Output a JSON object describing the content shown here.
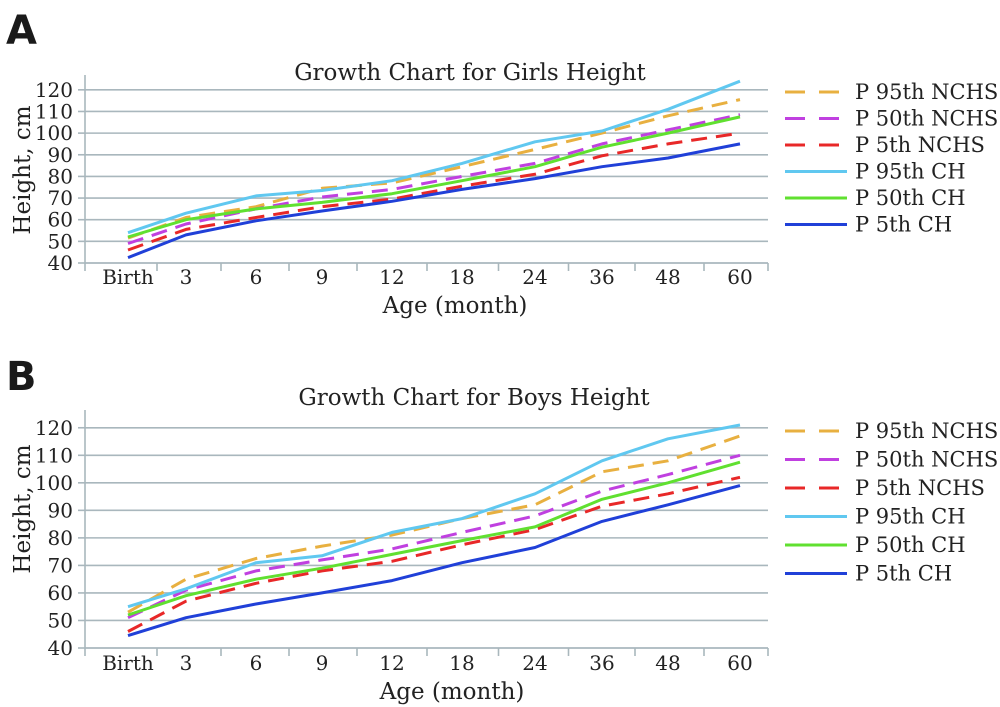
{
  "chart_data": [
    {
      "panel_label": "A",
      "type": "line",
      "title": "Growth Chart for Girls Height",
      "xlabel": "Age (month)",
      "ylabel": "Height, cm",
      "categories": [
        "Birth",
        "3",
        "6",
        "9",
        "12",
        "18",
        "24",
        "36",
        "48",
        "60"
      ],
      "yticks": [
        40,
        50,
        60,
        70,
        80,
        90,
        100,
        110,
        120
      ],
      "ylim": [
        40,
        125
      ],
      "grid": true,
      "legend_position": "right",
      "series": [
        {
          "name": "P 95th NCHS",
          "color": "#e8b040",
          "dashed": true,
          "values": [
            51.5,
            61,
            66,
            74.5,
            77,
            84.5,
            92.5,
            100,
            108,
            115.5
          ]
        },
        {
          "name": "P 50th NCHS",
          "color": "#c040e0",
          "dashed": true,
          "values": [
            49,
            58,
            65,
            70.5,
            74,
            80,
            86,
            95,
            101.5,
            108.5
          ]
        },
        {
          "name": "P 5th NCHS",
          "color": "#e82828",
          "dashed": true,
          "values": [
            46,
            55.5,
            61,
            66,
            69.5,
            75.5,
            81,
            89.5,
            95,
            100
          ]
        },
        {
          "name": "P 95th CH",
          "color": "#60c8f0",
          "dashed": false,
          "values": [
            54,
            63,
            71,
            73.5,
            78,
            86,
            96,
            101,
            111,
            124
          ]
        },
        {
          "name": "P 50th CH",
          "color": "#60e030",
          "dashed": false,
          "values": [
            52,
            60,
            65,
            68,
            72,
            78,
            84.5,
            93.5,
            100,
            107.5
          ]
        },
        {
          "name": "P 5th CH",
          "color": "#2040d8",
          "dashed": false,
          "values": [
            42.5,
            53,
            59.5,
            64,
            68.5,
            74,
            79,
            84.5,
            88.5,
            95
          ]
        }
      ]
    },
    {
      "panel_label": "B",
      "type": "line",
      "title": "Growth Chart for Boys Height",
      "xlabel": "Age (month)",
      "ylabel": "Height, cm",
      "categories": [
        "Birth",
        "3",
        "6",
        "9",
        "12",
        "18",
        "24",
        "36",
        "48",
        "60"
      ],
      "yticks": [
        40,
        50,
        60,
        70,
        80,
        90,
        100,
        110,
        120
      ],
      "ylim": [
        40,
        125
      ],
      "grid": true,
      "legend_position": "right",
      "series": [
        {
          "name": "P 95th NCHS",
          "color": "#e8b040",
          "dashed": true,
          "values": [
            53,
            65,
            72.5,
            77,
            81,
            87,
            92,
            104,
            108,
            117
          ]
        },
        {
          "name": "P 50th NCHS",
          "color": "#c040e0",
          "dashed": true,
          "values": [
            51,
            61,
            68,
            72,
            76,
            82,
            88,
            97,
            103,
            110
          ]
        },
        {
          "name": "P 5th NCHS",
          "color": "#e82828",
          "dashed": true,
          "values": [
            46,
            57,
            63.5,
            68,
            71.5,
            77.5,
            83,
            91.5,
            96,
            102
          ]
        },
        {
          "name": "P 95th CH",
          "color": "#60c8f0",
          "dashed": false,
          "values": [
            55,
            61.5,
            71,
            73.5,
            82,
            87,
            96,
            108,
            116,
            121
          ]
        },
        {
          "name": "P 50th CH",
          "color": "#60e030",
          "dashed": false,
          "values": [
            52,
            59,
            65,
            69,
            74,
            79,
            84,
            94,
            100,
            107.5
          ]
        },
        {
          "name": "P 5th CH",
          "color": "#2040d8",
          "dashed": false,
          "values": [
            44.5,
            51,
            56,
            60,
            64.5,
            71,
            76.5,
            86,
            92,
            99
          ]
        }
      ]
    }
  ]
}
